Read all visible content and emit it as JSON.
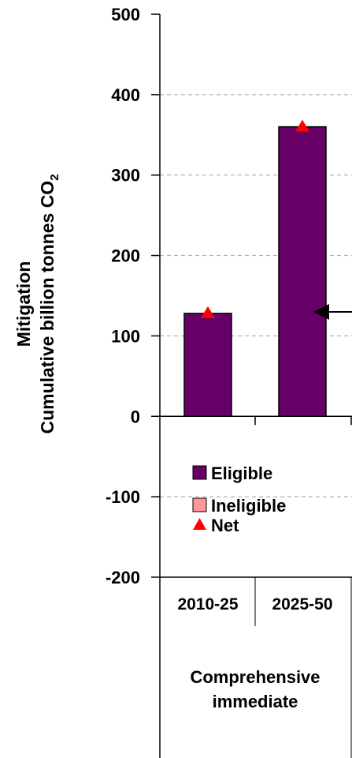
{
  "chart_data": {
    "type": "bar",
    "categories": [
      "2010-25",
      "2025-50"
    ],
    "group_label": [
      "Comprehensive",
      "immediate"
    ],
    "series": [
      {
        "name": "Eligible",
        "values": [
          128,
          360
        ],
        "color": "#660066"
      },
      {
        "name": "Ineligible",
        "values": [
          0,
          0
        ],
        "color": "#ff9999"
      },
      {
        "name": "Net",
        "values": [
          128,
          360
        ],
        "color": "#ff0000",
        "marker": "triangle"
      }
    ],
    "ylabel_line1": "Mitigation",
    "ylabel_line2": "Cumulative billion tonnes CO",
    "ylabel_subscript": "2",
    "ylim": [
      -200,
      500
    ],
    "yticks": [
      "500",
      "400",
      "300",
      "200",
      "100",
      "0",
      "-100",
      "-200"
    ],
    "ytick_values": [
      500,
      400,
      300,
      200,
      100,
      0,
      -100,
      -200
    ],
    "grid": true,
    "legend_position": "bottom-left-inside"
  }
}
